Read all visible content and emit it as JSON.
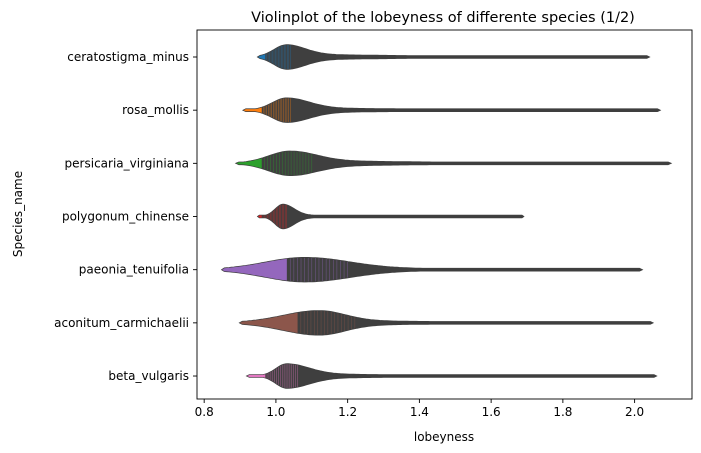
{
  "chart_data": {
    "type": "violin",
    "title": "Violinplot of the lobeyness of differente species (1/2)",
    "xlabel": "lobeyness",
    "ylabel": "Species_name",
    "xlim": [
      0.78,
      2.16
    ],
    "xticks": [
      0.8,
      1.0,
      1.2,
      1.4,
      1.6,
      1.8,
      2.0
    ],
    "xtick_labels": [
      "0.8",
      "1.0",
      "1.2",
      "1.4",
      "1.6",
      "1.8",
      "2.0"
    ],
    "grid": false,
    "series": [
      {
        "name": "ceratostigma_minus",
        "color": "#1f77b4",
        "min": 0.95,
        "max": 2.04,
        "peak": 1.03,
        "spread_left": 0.035,
        "spread_right": 0.05,
        "tail": 0.25,
        "q1": 0.97,
        "median": 1.0,
        "q3": 1.04
      },
      {
        "name": "rosa_mollis",
        "color": "#ff7f0e",
        "min": 0.91,
        "max": 2.07,
        "peak": 1.03,
        "spread_left": 0.04,
        "spread_right": 0.06,
        "tail": 0.22,
        "q1": 0.96,
        "median": 0.99,
        "q3": 1.04
      },
      {
        "name": "persicaria_virginiana",
        "color": "#2ca02c",
        "min": 0.89,
        "max": 2.1,
        "peak": 1.04,
        "spread_left": 0.06,
        "spread_right": 0.07,
        "tail": 0.28,
        "q1": 0.96,
        "median": 1.0,
        "q3": 1.1
      },
      {
        "name": "polygonum_chinense",
        "color": "#d62728",
        "min": 0.95,
        "max": 1.69,
        "peak": 1.02,
        "spread_left": 0.022,
        "spread_right": 0.03,
        "tail": 0.1,
        "q1": 0.96,
        "median": 0.99,
        "q3": 1.03
      },
      {
        "name": "paeonia_tenuifolia",
        "color": "#9467bd",
        "min": 0.85,
        "max": 2.02,
        "peak": 1.08,
        "spread_left": 0.11,
        "spread_right": 0.12,
        "tail": 0.18,
        "q1": 1.03,
        "median": 1.1,
        "q3": 1.2
      },
      {
        "name": "aconitum_carmichaelii",
        "color": "#8c564b",
        "min": 0.9,
        "max": 2.05,
        "peak": 1.12,
        "spread_left": 0.1,
        "spread_right": 0.07,
        "tail": 0.22,
        "q1": 1.06,
        "median": 1.12,
        "q3": 1.22
      },
      {
        "name": "beta_vulgaris",
        "color": "#e377c2",
        "min": 0.92,
        "max": 2.06,
        "peak": 1.03,
        "spread_left": 0.03,
        "spread_right": 0.06,
        "tail": 0.2,
        "q1": 0.97,
        "median": 1.0,
        "q3": 1.06
      }
    ]
  }
}
